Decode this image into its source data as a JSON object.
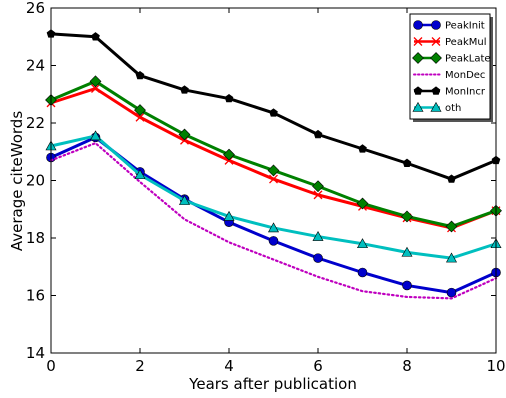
{
  "chart_data": {
    "type": "line",
    "xlabel": "Years after publication",
    "ylabel": "Average citeWords",
    "xlim": [
      0,
      10
    ],
    "ylim": [
      14,
      26
    ],
    "xticks": [
      0,
      2,
      4,
      6,
      8,
      10
    ],
    "yticks": [
      14,
      16,
      18,
      20,
      22,
      24,
      26
    ],
    "grid": false,
    "legend_position": "top-right",
    "x": [
      0,
      1,
      2,
      3,
      4,
      5,
      6,
      7,
      8,
      9,
      10
    ],
    "series": [
      {
        "name": "PeakInit",
        "color": "#0000cc",
        "marker": "circle",
        "line": "solid",
        "values": [
          20.8,
          21.5,
          20.3,
          19.35,
          18.55,
          17.9,
          17.3,
          16.8,
          16.35,
          16.1,
          16.8
        ]
      },
      {
        "name": "PeakMul",
        "color": "#ff0000",
        "marker": "x",
        "line": "solid",
        "values": [
          22.7,
          23.2,
          22.2,
          21.4,
          20.7,
          20.05,
          19.5,
          19.1,
          18.7,
          18.35,
          18.95
        ]
      },
      {
        "name": "PeakLate",
        "color": "#008000",
        "marker": "diamond",
        "line": "solid",
        "values": [
          22.8,
          23.45,
          22.45,
          21.6,
          20.9,
          20.35,
          19.8,
          19.2,
          18.75,
          18.4,
          18.95
        ]
      },
      {
        "name": "MonDec",
        "color": "#bf00bf",
        "marker": "none",
        "line": "dotted",
        "values": [
          20.7,
          21.3,
          19.95,
          18.65,
          17.85,
          17.25,
          16.65,
          16.15,
          15.95,
          15.9,
          16.6
        ]
      },
      {
        "name": "MonIncr",
        "color": "#000000",
        "marker": "pentagon",
        "line": "solid",
        "values": [
          25.1,
          25.0,
          23.65,
          23.15,
          22.85,
          22.35,
          21.6,
          21.1,
          20.6,
          20.05,
          20.7
        ]
      },
      {
        "name": "oth",
        "color": "#00bfbf",
        "marker": "triangle",
        "line": "solid",
        "values": [
          21.2,
          21.55,
          20.2,
          19.3,
          18.75,
          18.35,
          18.05,
          17.8,
          17.5,
          17.3,
          17.8
        ]
      }
    ]
  }
}
